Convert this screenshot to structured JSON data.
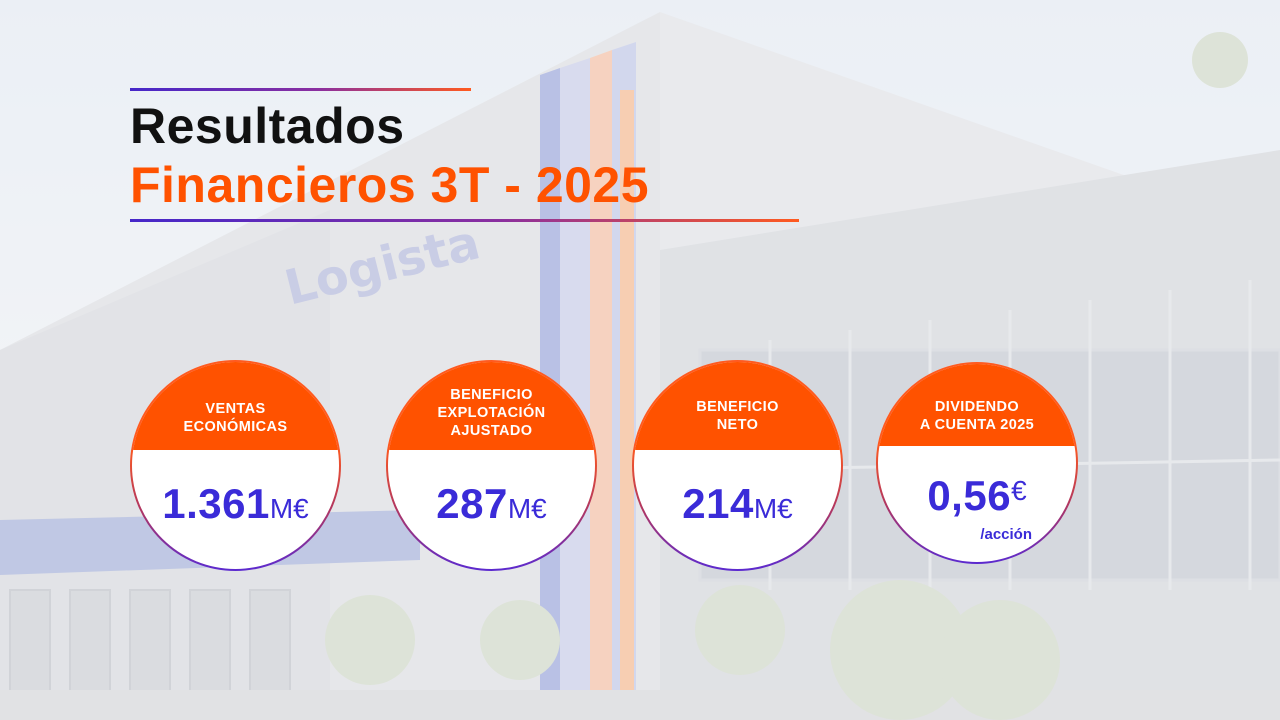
{
  "background": {
    "sign_text": "Logista",
    "colors": {
      "orange": "#ff5200",
      "indigo": "#3a2bd8",
      "purple": "#5b2ad0"
    }
  },
  "title": {
    "line1": "Resultados",
    "line2": "Financieros 3T - 2025"
  },
  "kpis": [
    {
      "label_lines": [
        "VENTAS",
        "ECONÓMICAS"
      ],
      "value": "1.361",
      "unit": "M€",
      "sub": ""
    },
    {
      "label_lines": [
        "BENEFICIO",
        "EXPLOTACIÓN",
        "AJUSTADO"
      ],
      "value": "287",
      "unit": "M€",
      "sub": ""
    },
    {
      "label_lines": [
        "BENEFICIO",
        "NETO"
      ],
      "value": "214",
      "unit": "M€",
      "sub": ""
    },
    {
      "label_lines": [
        "DIVIDENDO",
        "A CUENTA 2025"
      ],
      "value": "0,56",
      "unit": "€",
      "sub": "/acción"
    }
  ]
}
